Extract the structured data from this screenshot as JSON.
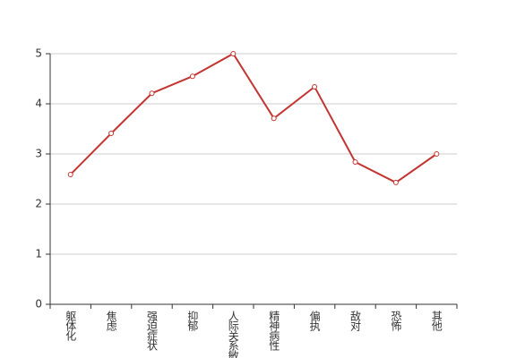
{
  "chart_data": {
    "type": "line",
    "categories": [
      "躯体化",
      "焦虑",
      "强迫症状",
      "抑郁",
      "人际关系敏感",
      "精神病性",
      "偏执",
      "敌对",
      "恐怖",
      "其他"
    ],
    "values": [
      2.59,
      3.41,
      4.21,
      4.55,
      5.0,
      3.71,
      4.34,
      2.84,
      2.43,
      3.0
    ],
    "color": "#c23531",
    "ylim": [
      0,
      5
    ],
    "yticks": [
      0,
      1,
      2,
      3,
      4,
      5
    ],
    "grid": true
  }
}
